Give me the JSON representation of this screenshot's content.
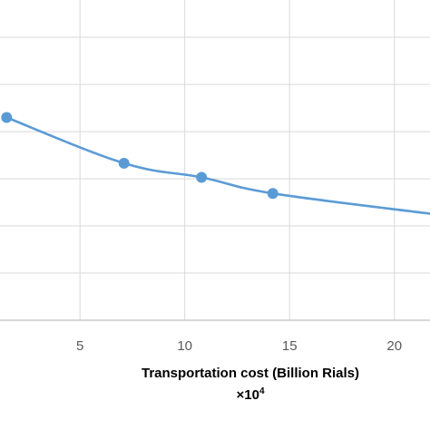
{
  "chart_data": {
    "type": "line",
    "xlabel": "Transportation cost (Billion Rials)",
    "x_multiplier": "×10",
    "x_multiplier_exp": "4",
    "x_ticks": [
      5,
      10,
      15,
      20
    ],
    "x_tick_labels": [
      "5",
      "10",
      "15",
      "20"
    ],
    "xlim": [
      1.4,
      21.7
    ],
    "y_gridlines": [
      0,
      1,
      2,
      3,
      4,
      5,
      6
    ],
    "ylim": [
      0,
      6.6
    ],
    "series": [
      {
        "x": [
          1.5,
          7.1,
          10.8,
          14.2,
          21.7
        ],
        "y": [
          4.3,
          3.33,
          3.03,
          2.69,
          2.26
        ],
        "markers": [
          true,
          true,
          true,
          true,
          false
        ]
      }
    ],
    "grid": true,
    "colors": {
      "line": "#5b9bd5",
      "grid": "#d9d9d9",
      "axis": "#bfbfbf"
    }
  }
}
